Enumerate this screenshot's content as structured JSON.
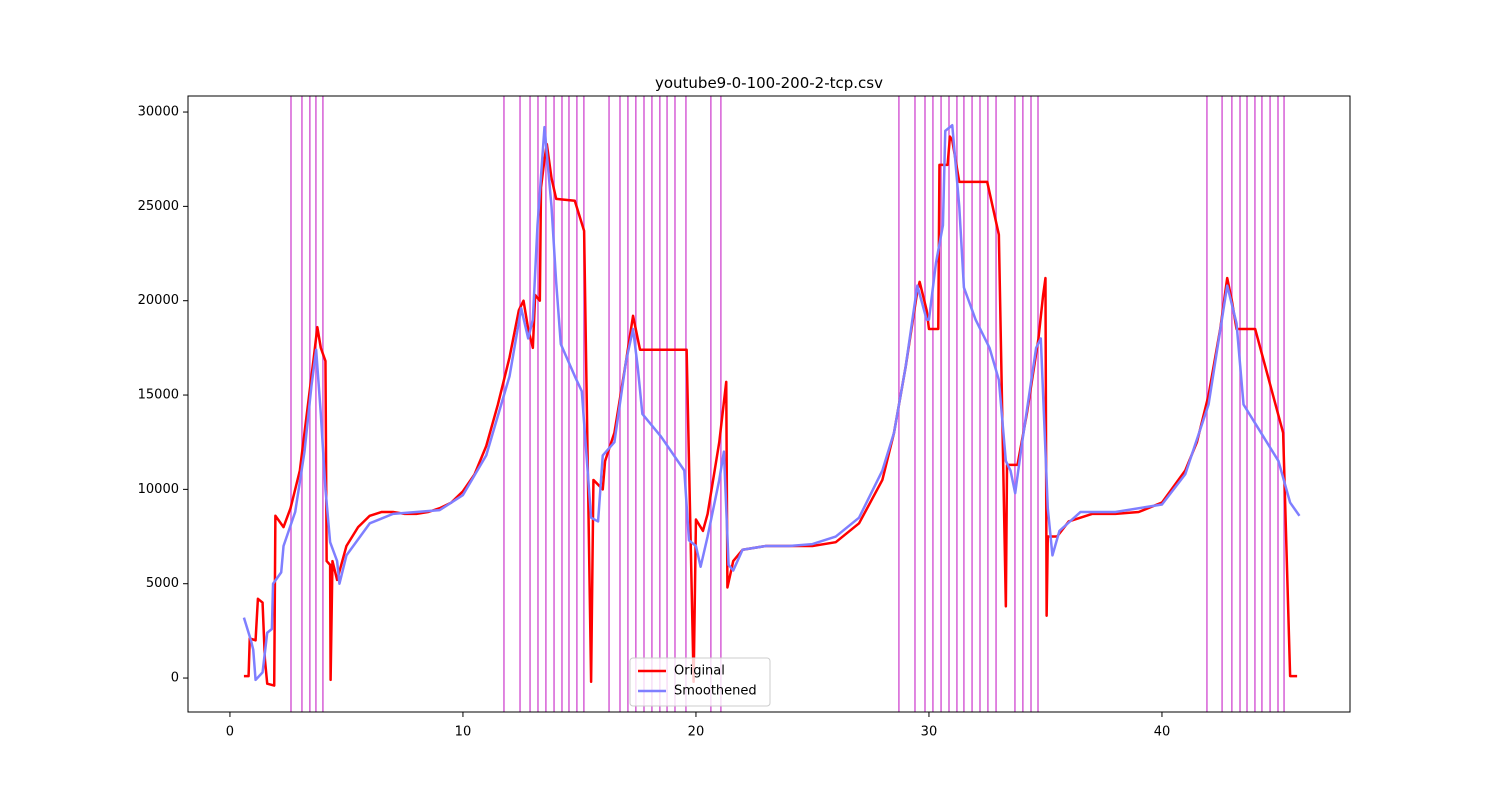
{
  "chart_data": {
    "type": "line",
    "title": "youtube9-0-100-200-2-tcp.csv",
    "xlim": [
      -1.8,
      48.07
    ],
    "ylim": [
      -1800,
      30850
    ],
    "xticks": [
      0,
      10,
      20,
      30,
      40
    ],
    "yticks": [
      0,
      5000,
      10000,
      15000,
      20000,
      25000,
      30000
    ],
    "legend": "lower center",
    "vlines": {
      "color": "#d65fd6",
      "x": [
        2.62,
        3.09,
        3.43,
        3.69,
        3.99,
        11.76,
        12.45,
        12.88,
        13.22,
        13.56,
        13.91,
        14.25,
        14.55,
        14.89,
        15.19,
        16.27,
        16.74,
        17.08,
        17.42,
        17.77,
        18.11,
        18.45,
        18.76,
        19.1,
        19.57,
        20.64,
        21.07,
        28.71,
        29.4,
        29.83,
        30.17,
        30.52,
        30.86,
        31.2,
        31.5,
        31.85,
        32.19,
        32.53,
        32.88,
        33.69,
        34.03,
        34.38,
        34.68,
        41.93,
        42.58,
        43.0,
        43.35,
        43.65,
        43.99,
        44.29,
        44.64,
        44.98,
        45.24
      ]
    },
    "series": [
      {
        "name": "Original",
        "color": "#ff0000",
        "x": [
          0.6,
          0.8,
          0.85,
          1.1,
          1.2,
          1.4,
          1.5,
          1.6,
          1.9,
          1.95,
          2.3,
          2.6,
          3.0,
          3.3,
          3.6,
          3.75,
          3.9,
          4.1,
          4.15,
          4.3,
          4.32,
          4.4,
          4.6,
          5.0,
          5.5,
          6.0,
          6.5,
          7,
          7.5,
          8,
          8.5,
          9,
          9.5,
          10,
          10.5,
          11,
          11.5,
          12,
          12.4,
          12.6,
          12.8,
          13.0,
          13.1,
          13.3,
          13.35,
          13.5,
          13.6,
          13.8,
          14,
          14.8,
          15.2,
          15.5,
          15.6,
          16,
          16.1,
          16.5,
          17,
          17.3,
          17.5,
          17.6,
          19.6,
          19.9,
          20.0,
          20.3,
          20.5,
          21.0,
          21.3,
          21.35,
          21.6,
          22,
          23,
          24,
          25,
          26,
          27,
          28,
          28.5,
          29,
          29.5,
          29.6,
          29.9,
          30.0,
          30.4,
          30.45,
          30.8,
          30.9,
          31.0,
          31.3,
          32.5,
          33.0,
          33.3,
          33.35,
          33.8,
          34.2,
          34.7,
          34.9,
          35.0,
          35.05,
          35.1,
          35.5,
          36,
          37,
          38,
          39,
          40,
          41,
          41.5,
          42,
          42.5,
          42.8,
          43.0,
          43.2,
          44,
          45.2,
          45.5,
          45.8
        ],
        "values": [
          100,
          100,
          2100,
          2000,
          4200,
          4000,
          1000,
          -300,
          -400,
          8600,
          8000,
          9000,
          11000,
          14000,
          17000,
          18600,
          17500,
          16800,
          6200,
          6000,
          -100,
          6200,
          5200,
          7000,
          8000,
          8600,
          8800,
          8800,
          8700,
          8700,
          8800,
          9000,
          9300,
          9900,
          10800,
          12300,
          14500,
          17000,
          19500,
          20000,
          18500,
          17500,
          20300,
          20000,
          26000,
          27500,
          28300,
          26500,
          25400,
          25300,
          23700,
          -200,
          10500,
          10000,
          11500,
          13000,
          16800,
          19200,
          18000,
          17400,
          17400,
          -200,
          8400,
          7800,
          8700,
          12500,
          15700,
          4800,
          6200,
          6800,
          7000,
          7000,
          7000,
          7200,
          8200,
          10500,
          13000,
          16500,
          20500,
          21000,
          19500,
          18500,
          18500,
          27200,
          27200,
          28700,
          28500,
          26300,
          26300,
          23500,
          3800,
          11300,
          11300,
          14000,
          18000,
          20300,
          21200,
          3300,
          7500,
          7500,
          8300,
          8700,
          8700,
          8800,
          9300,
          11000,
          12500,
          15000,
          18500,
          21200,
          20000,
          18500,
          18500,
          13000,
          100,
          100
        ]
      },
      {
        "name": "Smoothened",
        "color": "#7f7fff",
        "x": [
          0.6,
          0.9,
          1.0,
          1.1,
          1.4,
          1.6,
          1.8,
          1.85,
          2.2,
          2.3,
          2.8,
          3.2,
          3.5,
          3.7,
          3.9,
          4.1,
          4.3,
          4.6,
          4.7,
          5.0,
          6,
          7,
          8,
          9,
          10,
          11,
          12,
          12.5,
          12.8,
          13.0,
          13.2,
          13.5,
          13.8,
          14.0,
          14.2,
          14.8,
          15.1,
          15.5,
          15.8,
          16.0,
          16.5,
          17.0,
          17.3,
          17.5,
          17.7,
          18.5,
          19.5,
          19.7,
          20.0,
          20.2,
          20.5,
          21.0,
          21.2,
          21.4,
          21.6,
          22,
          23,
          24,
          25,
          26,
          27,
          28,
          28.5,
          29,
          29.5,
          29.9,
          30.0,
          30.3,
          30.6,
          30.7,
          31.0,
          31.3,
          31.5,
          32,
          32.6,
          33.0,
          33.3,
          33.5,
          33.7,
          34.0,
          34.6,
          34.8,
          35.1,
          35.3,
          35.6,
          36.5,
          38,
          40,
          41,
          42,
          42.8,
          43.2,
          43.5,
          44,
          45,
          45.5,
          45.9
        ],
        "values": [
          3200,
          2000,
          1500,
          -100,
          300,
          2400,
          2600,
          5000,
          5600,
          7000,
          8800,
          12000,
          15500,
          17400,
          14000,
          10000,
          7200,
          6200,
          5000,
          6500,
          8200,
          8700,
          8800,
          8900,
          9700,
          11800,
          16000,
          19600,
          18000,
          19000,
          24000,
          29200,
          25000,
          21000,
          17700,
          16000,
          15200,
          8500,
          8300,
          11800,
          12500,
          16800,
          18500,
          16500,
          14000,
          12800,
          11000,
          7300,
          7000,
          5900,
          7500,
          10500,
          12000,
          6000,
          5700,
          6800,
          7000,
          7000,
          7100,
          7500,
          8500,
          11000,
          13000,
          16500,
          20800,
          19000,
          19000,
          22000,
          24000,
          29000,
          29300,
          25000,
          20700,
          19000,
          17500,
          15800,
          11500,
          11000,
          9800,
          12500,
          17500,
          18000,
          9000,
          6500,
          7800,
          8800,
          8800,
          9200,
          10800,
          14500,
          20800,
          18800,
          14500,
          13500,
          11500,
          9300,
          8600
        ]
      }
    ]
  }
}
